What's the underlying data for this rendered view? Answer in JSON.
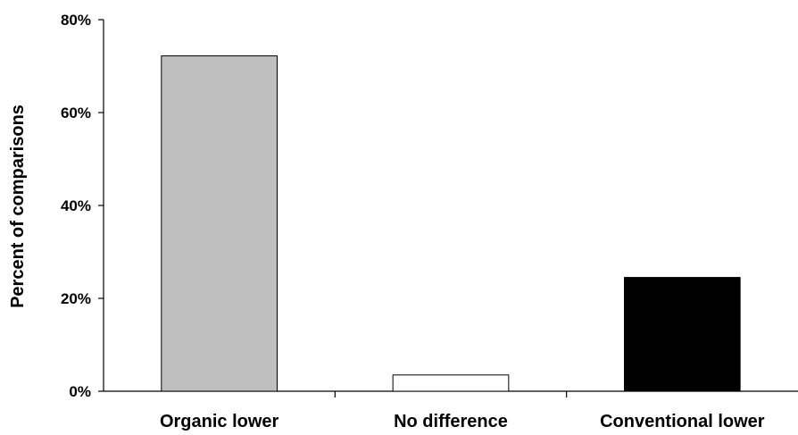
{
  "chart_data": {
    "type": "bar",
    "title": "",
    "xlabel": "",
    "ylabel": "Percent of comparisons",
    "categories": [
      "Organic lower",
      "No difference",
      "Conventional lower"
    ],
    "values": [
      72.2,
      3.5,
      24.5
    ],
    "colors": [
      "#bfbfbf",
      "#ffffff",
      "#000000"
    ],
    "ylim": [
      0,
      80
    ],
    "yticks": [
      0,
      20,
      40,
      60,
      80
    ],
    "ytick_labels": [
      "0%",
      "20%",
      "40%",
      "60%",
      "80%"
    ],
    "grid": false,
    "legend": "none"
  }
}
